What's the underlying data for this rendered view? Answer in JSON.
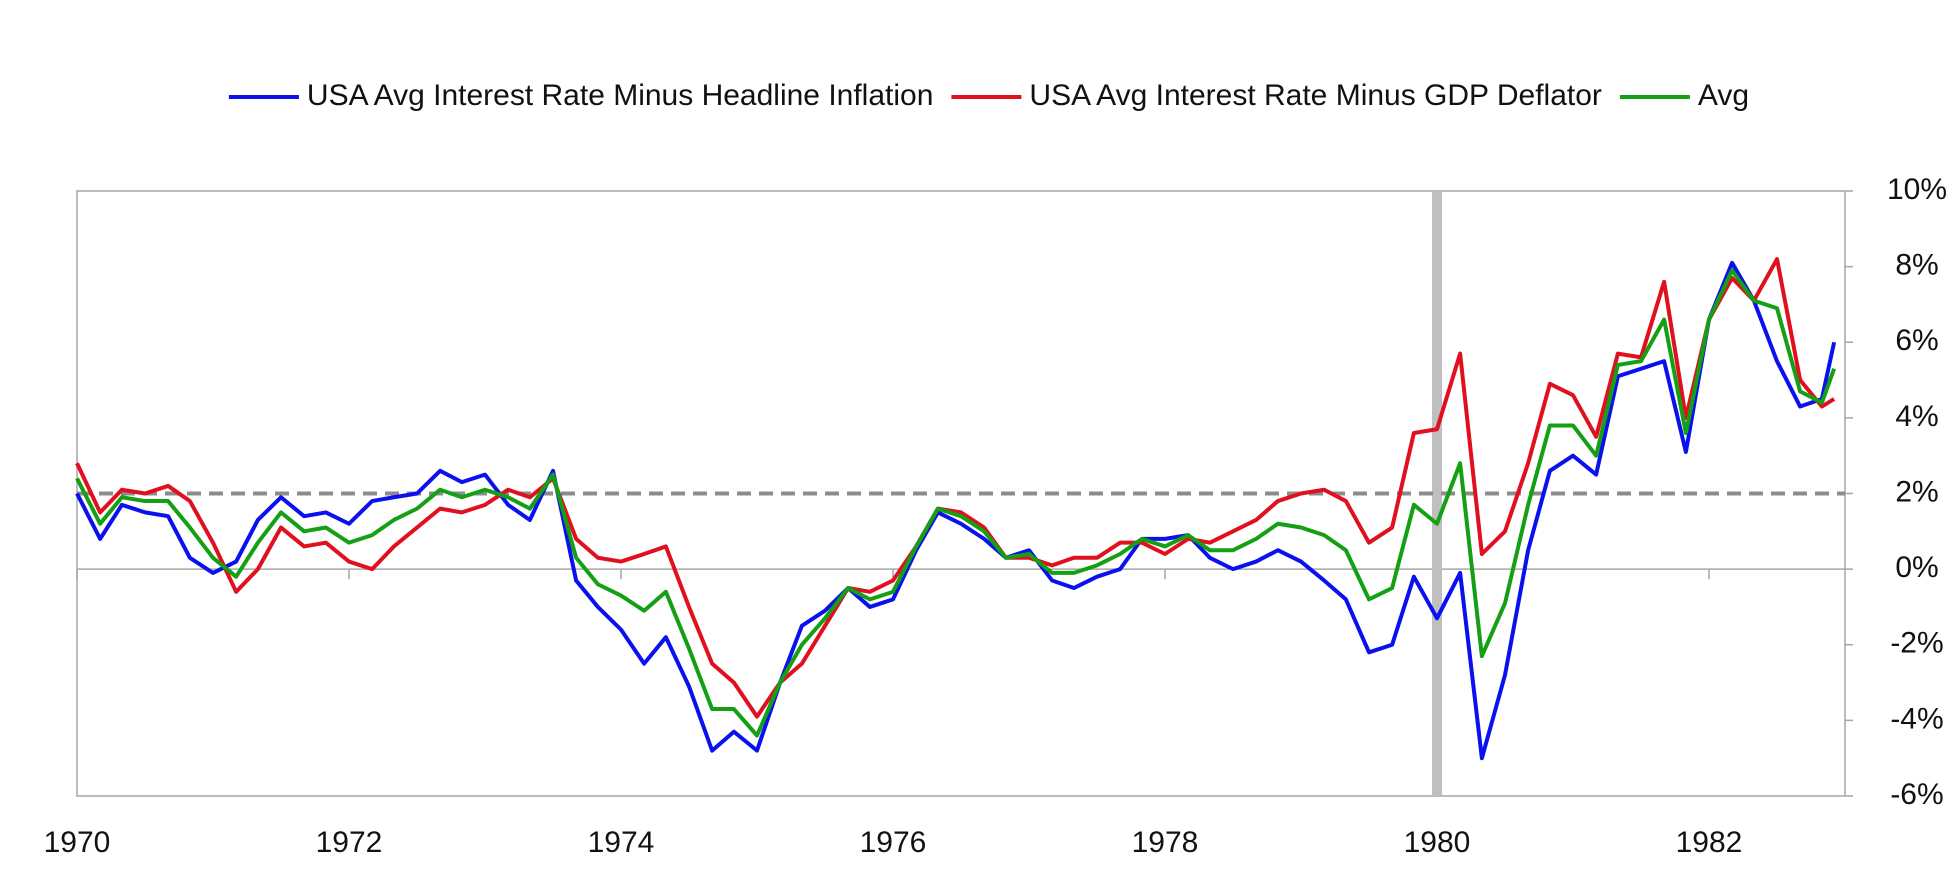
{
  "chart_data": {
    "type": "line",
    "x": [
      1970,
      1970.17,
      1970.33,
      1970.5,
      1970.67,
      1970.83,
      1971,
      1971.17,
      1971.33,
      1971.5,
      1971.67,
      1971.83,
      1972,
      1972.17,
      1972.33,
      1972.5,
      1972.67,
      1972.83,
      1973,
      1973.17,
      1973.33,
      1973.5,
      1973.67,
      1973.83,
      1974,
      1974.17,
      1974.33,
      1974.5,
      1974.67,
      1974.83,
      1975,
      1975.17,
      1975.33,
      1975.5,
      1975.67,
      1975.83,
      1976,
      1976.17,
      1976.33,
      1976.5,
      1976.67,
      1976.83,
      1977,
      1977.17,
      1977.33,
      1977.5,
      1977.67,
      1977.83,
      1978,
      1978.17,
      1978.33,
      1978.5,
      1978.67,
      1978.83,
      1979,
      1979.17,
      1979.33,
      1979.5,
      1979.67,
      1979.83,
      1980,
      1980.17,
      1980.33,
      1980.5,
      1980.67,
      1980.83,
      1981,
      1981.17,
      1981.33,
      1981.5,
      1981.67,
      1981.83,
      1982,
      1982.17,
      1982.33,
      1982.5,
      1982.67,
      1982.83,
      1982.92
    ],
    "series": [
      {
        "name": "USA Avg Interest Rate Minus Headline Inflation",
        "color": "#0a10ee",
        "values": [
          2.0,
          0.8,
          1.7,
          1.5,
          1.4,
          0.3,
          -0.1,
          0.2,
          1.3,
          1.9,
          1.4,
          1.5,
          1.2,
          1.8,
          1.9,
          2.0,
          2.6,
          2.3,
          2.5,
          1.7,
          1.3,
          2.6,
          -0.3,
          -1.0,
          -1.6,
          -2.5,
          -1.8,
          -3.1,
          -4.8,
          -4.3,
          -4.8,
          -3.0,
          -1.5,
          -1.1,
          -0.5,
          -1.0,
          -0.8,
          0.5,
          1.5,
          1.2,
          0.8,
          0.3,
          0.5,
          -0.3,
          -0.5,
          -0.2,
          0.0,
          0.8,
          0.8,
          0.9,
          0.3,
          0.0,
          0.2,
          0.5,
          0.2,
          -0.3,
          -0.8,
          -2.2,
          -2.0,
          -0.2,
          -1.3,
          -0.1,
          -5.0,
          -2.8,
          0.5,
          2.6,
          3.0,
          2.5,
          5.1,
          5.3,
          5.5,
          3.1,
          6.6,
          8.1,
          7.1,
          5.5,
          4.3,
          4.5,
          6.0
        ]
      },
      {
        "name": "USA Avg Interest Rate Minus GDP Deflator",
        "color": "#e0101e",
        "values": [
          2.8,
          1.5,
          2.1,
          2.0,
          2.2,
          1.8,
          0.7,
          -0.6,
          0.0,
          1.1,
          0.6,
          0.7,
          0.2,
          0.0,
          0.6,
          1.1,
          1.6,
          1.5,
          1.7,
          2.1,
          1.9,
          2.4,
          0.8,
          0.3,
          0.2,
          0.4,
          0.6,
          -1.0,
          -2.5,
          -3.0,
          -3.9,
          -3.0,
          -2.5,
          -1.5,
          -0.5,
          -0.6,
          -0.3,
          0.6,
          1.6,
          1.5,
          1.1,
          0.3,
          0.3,
          0.1,
          0.3,
          0.3,
          0.7,
          0.7,
          0.4,
          0.8,
          0.7,
          1.0,
          1.3,
          1.8,
          2.0,
          2.1,
          1.8,
          0.7,
          1.1,
          3.6,
          3.7,
          5.7,
          0.4,
          1.0,
          2.8,
          4.9,
          4.6,
          3.5,
          5.7,
          5.6,
          7.6,
          4.0,
          6.6,
          7.7,
          7.1,
          8.2,
          5.0,
          4.3,
          4.5
        ]
      },
      {
        "name": "Avg",
        "color": "#14a014",
        "values": [
          2.4,
          1.2,
          1.9,
          1.8,
          1.8,
          1.1,
          0.3,
          -0.2,
          0.7,
          1.5,
          1.0,
          1.1,
          0.7,
          0.9,
          1.3,
          1.6,
          2.1,
          1.9,
          2.1,
          1.9,
          1.6,
          2.5,
          0.3,
          -0.4,
          -0.7,
          -1.1,
          -0.6,
          -2.1,
          -3.7,
          -3.7,
          -4.4,
          -3.0,
          -2.0,
          -1.3,
          -0.5,
          -0.8,
          -0.6,
          0.6,
          1.6,
          1.4,
          1.0,
          0.3,
          0.4,
          -0.1,
          -0.1,
          0.1,
          0.4,
          0.8,
          0.6,
          0.9,
          0.5,
          0.5,
          0.8,
          1.2,
          1.1,
          0.9,
          0.5,
          -0.8,
          -0.5,
          1.7,
          1.2,
          2.8,
          -2.3,
          -0.9,
          1.7,
          3.8,
          3.8,
          3.0,
          5.4,
          5.5,
          6.6,
          3.6,
          6.6,
          7.9,
          7.1,
          6.9,
          4.7,
          4.4,
          5.3
        ]
      }
    ],
    "xlim": [
      1970,
      1983
    ],
    "xticks": [
      1970,
      1972,
      1974,
      1976,
      1978,
      1980,
      1982
    ],
    "ylim": [
      -6,
      10
    ],
    "yticks": [
      {
        "value": -6,
        "label": "-6%"
      },
      {
        "value": -4,
        "label": "-4%"
      },
      {
        "value": -2,
        "label": "-2%"
      },
      {
        "value": 0,
        "label": "0%"
      },
      {
        "value": 2,
        "label": "2%"
      },
      {
        "value": 4,
        "label": "4%"
      },
      {
        "value": 6,
        "label": "6%"
      },
      {
        "value": 8,
        "label": "8%"
      },
      {
        "value": 10,
        "label": "10%"
      }
    ],
    "y_axis_side": "right",
    "reference_y": 2,
    "highlight_x": 1980,
    "legend": "top"
  }
}
